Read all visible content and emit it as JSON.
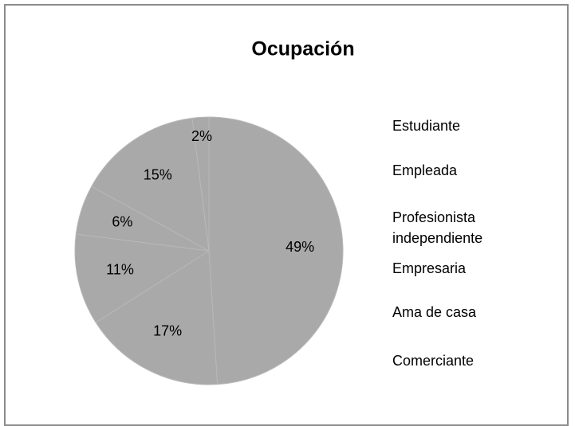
{
  "chart_data": {
    "type": "pie",
    "title": "Ocupación",
    "categories": [
      "Estudiante",
      "Empleada",
      "Profesionista independiente",
      "Empresaria",
      "Ama de casa",
      "Comerciante"
    ],
    "values": [
      49,
      17,
      11,
      6,
      15,
      2
    ],
    "value_labels": [
      "49%",
      "17%",
      "11%",
      "6%",
      "15%",
      "2%"
    ],
    "color": "#a9a9a9"
  }
}
